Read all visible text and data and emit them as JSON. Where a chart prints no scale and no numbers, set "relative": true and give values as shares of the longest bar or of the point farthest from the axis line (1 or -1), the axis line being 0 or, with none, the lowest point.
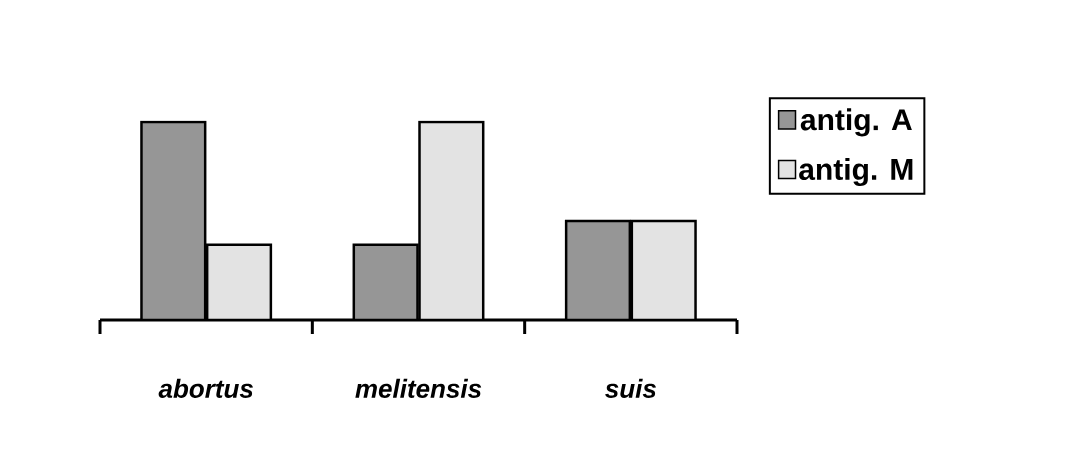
{
  "chart_data": {
    "type": "bar",
    "relative": true,
    "categories": [
      "*abortus*",
      "*melitensis*",
      "*suis*"
    ],
    "series": [
      {
        "name": "antig. A",
        "color": "#969696",
        "values": [
          1,
          0.38,
          0.5
        ]
      },
      {
        "name": "antig. M",
        "color": "#e3e3e3",
        "values": [
          0.38,
          1,
          0.5
        ]
      }
    ],
    "legend": "right"
  }
}
